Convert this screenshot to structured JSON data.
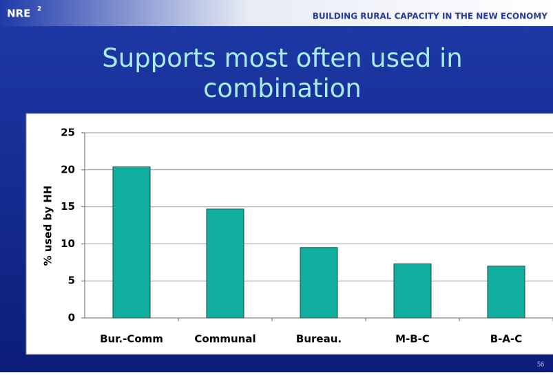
{
  "header": {
    "logo": "NRE",
    "logo_sup": "2",
    "tagline": "BUILDING RURAL CAPACITY IN THE NEW ECONOMY"
  },
  "chart_data": {
    "type": "bar",
    "title": "Supports most often used in combination",
    "categories": [
      "Bur.-Comm",
      "Communal",
      "Bureau.",
      "M-B-C",
      "B-A-C"
    ],
    "values": [
      20.4,
      14.7,
      9.5,
      7.3,
      7.0
    ],
    "color": "#0fae9e",
    "y_label": "% used by HH",
    "ylim": [
      0,
      25
    ],
    "yticks": [
      0,
      5,
      10,
      15,
      20,
      25
    ],
    "grid": true
  },
  "footer": {
    "page": "56"
  }
}
